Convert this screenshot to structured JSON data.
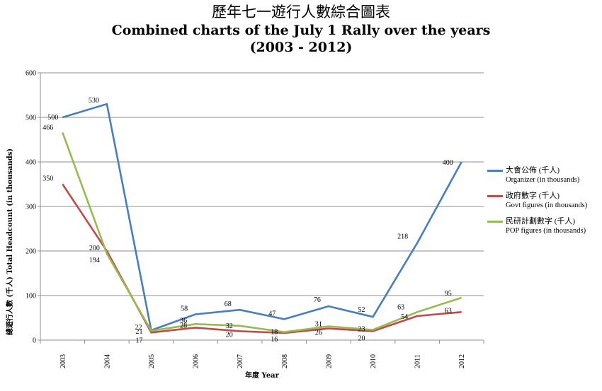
{
  "header": {
    "title_zh": "歷年七一遊行人數綜合圖表",
    "title_en": "Combined charts of the July 1 Rally over the years",
    "title_range": "(2003 - 2012)"
  },
  "chart_data": {
    "type": "line",
    "title": "歷年七一遊行人數綜合圖表 Combined charts of the July 1 Rally over the years (2003 - 2012)",
    "xlabel": "年度 Year",
    "ylabel": "總遊行人數 (千人) Total Headcount (in thousands)",
    "ylim": [
      0,
      600
    ],
    "yticks": [
      "0",
      "100",
      "200",
      "300",
      "400",
      "500",
      "600"
    ],
    "categories": [
      "2003",
      "2004",
      "2005",
      "2006",
      "2007",
      "2008",
      "2009",
      "2010",
      "2011",
      "2012"
    ],
    "grid": "horizontal",
    "legend_position": "right",
    "series": [
      {
        "name": "大會公佈 (千人)",
        "name_en": "Organizer (in thousands)",
        "color": "#4a7ebb",
        "values": [
          500,
          530,
          22,
          58,
          68,
          47,
          76,
          52,
          218,
          400
        ],
        "labels": [
          "500",
          "530",
          "22",
          "58",
          "68",
          "47",
          "76",
          "52",
          "218",
          "400"
        ]
      },
      {
        "name": "政府數字 (千人)",
        "name_en": "Govt figures (in thousands)",
        "color": "#be4b48",
        "values": [
          350,
          200,
          17,
          28,
          20,
          16,
          26,
          20,
          54,
          63
        ],
        "labels": [
          "350",
          "200",
          "17",
          "28",
          "20",
          "16",
          "26",
          "20",
          "54",
          "63"
        ]
      },
      {
        "name": "民研計劃數字 (千人)",
        "name_en": "POP figures (in thousands)",
        "color": "#98b954",
        "values": [
          466,
          194,
          21,
          36,
          32,
          18,
          31,
          23,
          63,
          95
        ],
        "labels": [
          "466",
          "194",
          "21",
          "36",
          "32",
          "18",
          "31",
          "23",
          "63",
          "95"
        ]
      }
    ]
  }
}
